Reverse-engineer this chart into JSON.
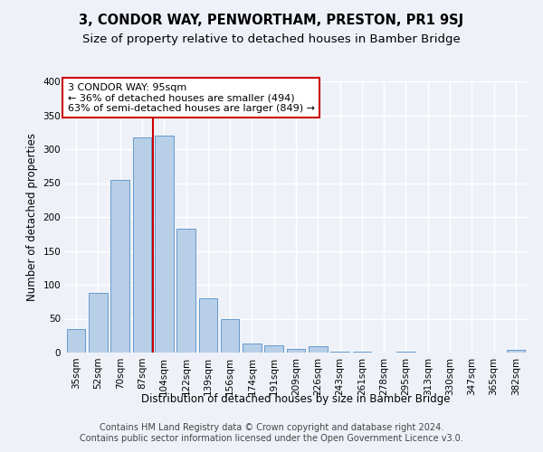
{
  "title": "3, CONDOR WAY, PENWORTHAM, PRESTON, PR1 9SJ",
  "subtitle": "Size of property relative to detached houses in Bamber Bridge",
  "xlabel": "Distribution of detached houses by size in Bamber Bridge",
  "ylabel": "Number of detached properties",
  "categories": [
    "35sqm",
    "52sqm",
    "70sqm",
    "87sqm",
    "104sqm",
    "122sqm",
    "139sqm",
    "156sqm",
    "174sqm",
    "191sqm",
    "209sqm",
    "226sqm",
    "243sqm",
    "261sqm",
    "278sqm",
    "295sqm",
    "313sqm",
    "330sqm",
    "347sqm",
    "365sqm",
    "382sqm"
  ],
  "values": [
    35,
    88,
    255,
    317,
    320,
    183,
    80,
    50,
    13,
    11,
    6,
    9,
    2,
    1,
    0,
    1,
    0,
    0,
    0,
    0,
    4
  ],
  "bar_color": "#b8cfe8",
  "bar_edge_color": "#6699cc",
  "reference_line_color": "#cc0000",
  "reference_line_x": 3.5,
  "annotation_text": "3 CONDOR WAY: 95sqm\n← 36% of detached houses are smaller (494)\n63% of semi-detached houses are larger (849) →",
  "annotation_box_color": "#ffffff",
  "annotation_box_edge_color": "#cc0000",
  "footer_text": "Contains HM Land Registry data © Crown copyright and database right 2024.\nContains public sector information licensed under the Open Government Licence v3.0.",
  "ylim": [
    0,
    400
  ],
  "yticks": [
    0,
    50,
    100,
    150,
    200,
    250,
    300,
    350,
    400
  ],
  "background_color": "#eef2f8",
  "grid_color": "#ffffff",
  "title_fontsize": 10.5,
  "subtitle_fontsize": 9.5,
  "axis_label_fontsize": 8.5,
  "tick_fontsize": 7.5,
  "annotation_fontsize": 8,
  "footer_fontsize": 7
}
